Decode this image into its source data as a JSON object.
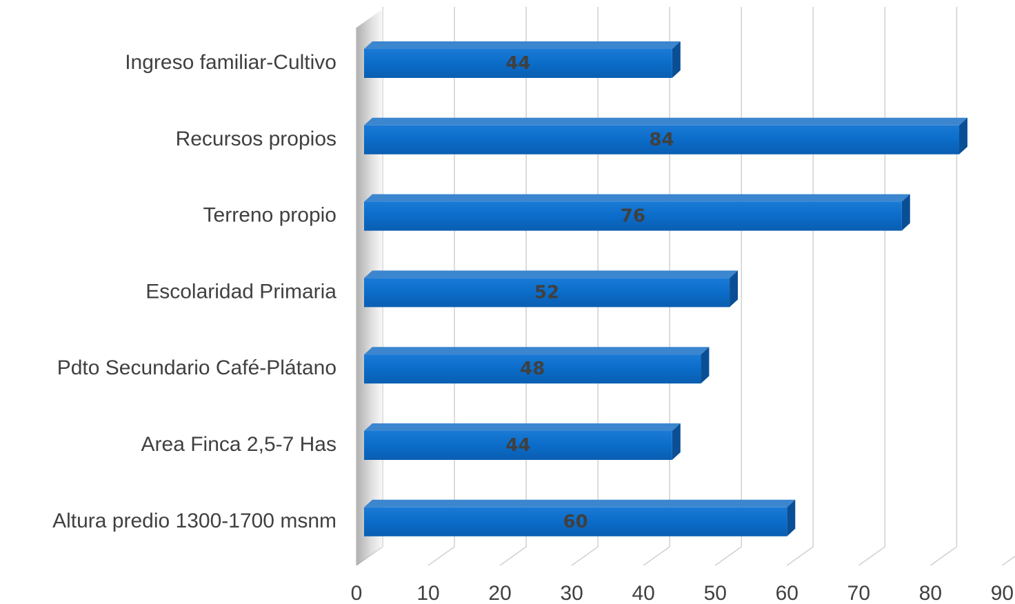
{
  "chart_data": {
    "type": "bar",
    "orientation": "horizontal",
    "style": "3d-clustered",
    "categories": [
      "Ingreso familiar-Cultivo",
      "Recursos propios",
      "Terreno propio",
      "Escolaridad Primaria",
      "Pdto Secundario Café-Plátano",
      "Area Finca 2,5-7 Has",
      "Altura predio 1300-1700 msnm"
    ],
    "values": [
      44,
      84,
      76,
      52,
      48,
      44,
      60
    ],
    "xlim": [
      0,
      90
    ],
    "xticks": [
      "0",
      "10",
      "20",
      "30",
      "40",
      "50",
      "60",
      "70",
      "80",
      "90"
    ],
    "grid": true,
    "data_labels": true,
    "colors": {
      "bar_front": "#0b6cc9",
      "bar_top": "#3b86cf",
      "bar_side": "#0a4f95",
      "grid": "#d0d0d0",
      "text": "#404040"
    }
  }
}
